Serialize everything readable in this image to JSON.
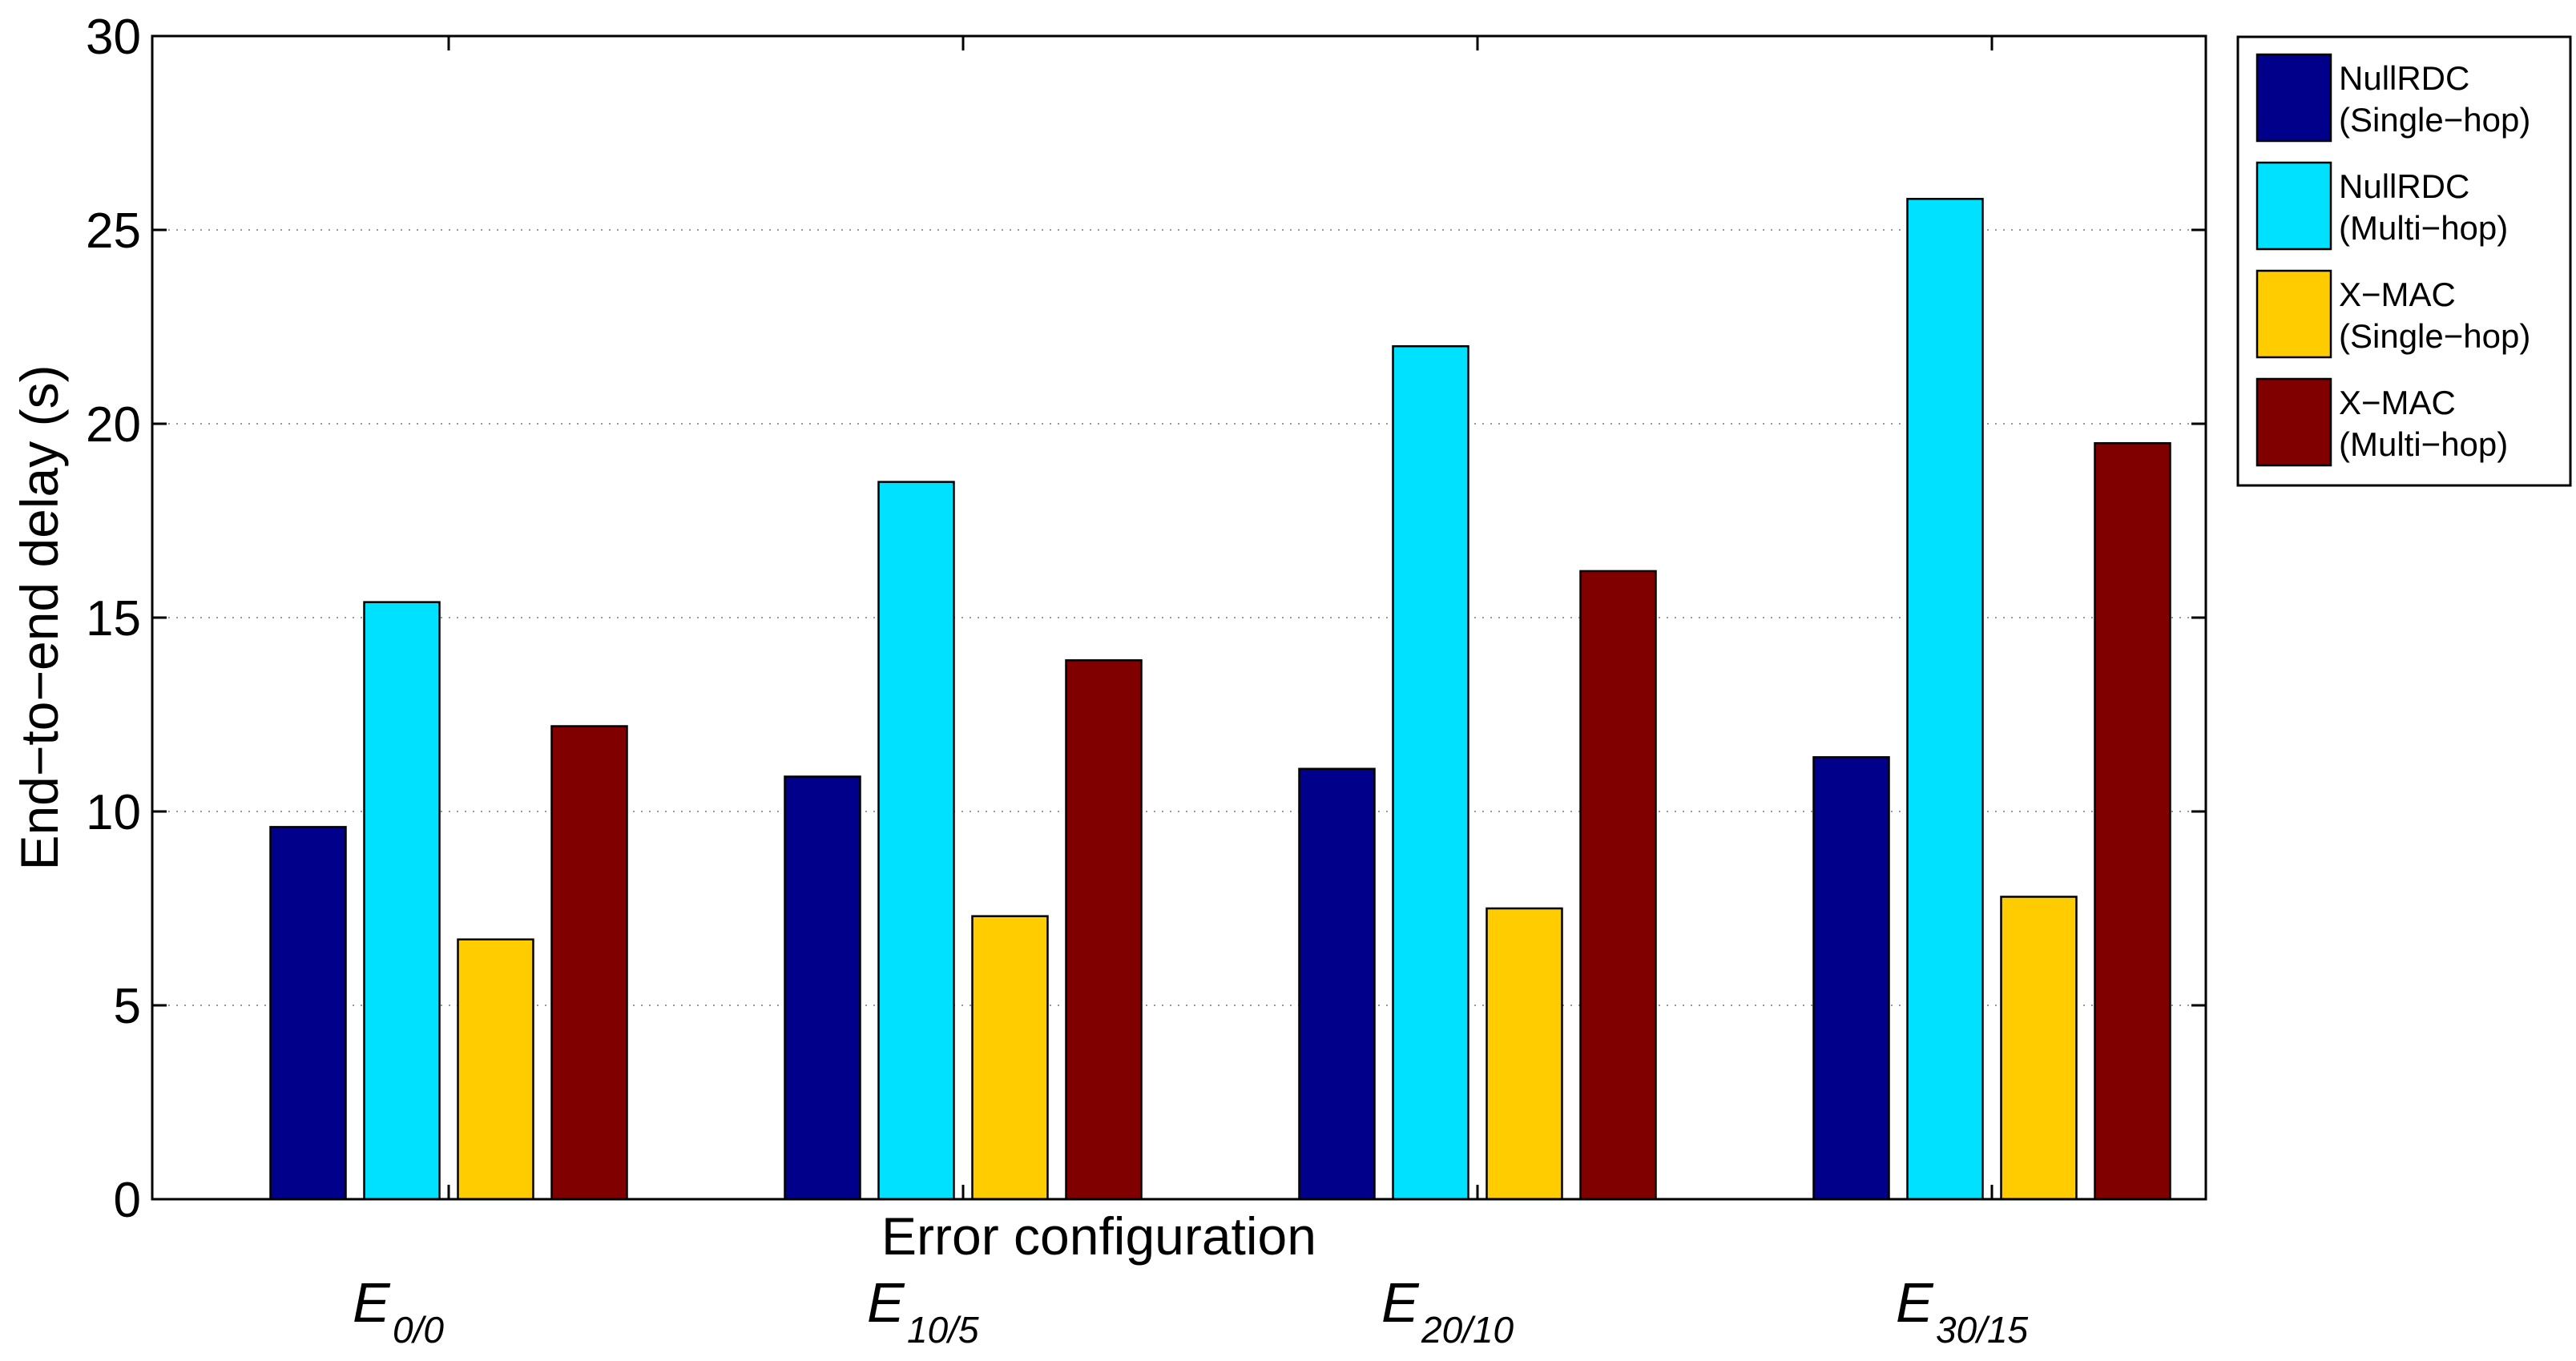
{
  "chart_data": {
    "type": "bar",
    "title": "",
    "xlabel": "Error configuration",
    "ylabel": "End−to−end delay (s)",
    "ylim": [
      0,
      30
    ],
    "yticks": [
      "0",
      "5",
      "10",
      "15",
      "20",
      "25",
      "30"
    ],
    "grid": "horizontal dotted",
    "legend_position": "outside-right-top",
    "categories": [
      {
        "base": "E",
        "sub": "0/0"
      },
      {
        "base": "E",
        "sub": "10/5"
      },
      {
        "base": "E",
        "sub": "20/10"
      },
      {
        "base": "E",
        "sub": "30/15"
      }
    ],
    "series": [
      {
        "name": "NullRDC",
        "name2": "(Single−hop)",
        "color": "#00008b",
        "values": [
          9.6,
          10.9,
          11.1,
          11.4
        ]
      },
      {
        "name": "NullRDC",
        "name2": "(Multi−hop)",
        "color": "#00e0ff",
        "values": [
          15.4,
          18.5,
          22.0,
          25.8
        ]
      },
      {
        "name": "X−MAC",
        "name2": "(Single−hop)",
        "color": "#ffcc00",
        "values": [
          6.7,
          7.3,
          7.5,
          7.8
        ]
      },
      {
        "name": "X−MAC",
        "name2": "(Multi−hop)",
        "color": "#800000",
        "values": [
          12.2,
          13.9,
          16.2,
          19.5
        ]
      }
    ]
  }
}
